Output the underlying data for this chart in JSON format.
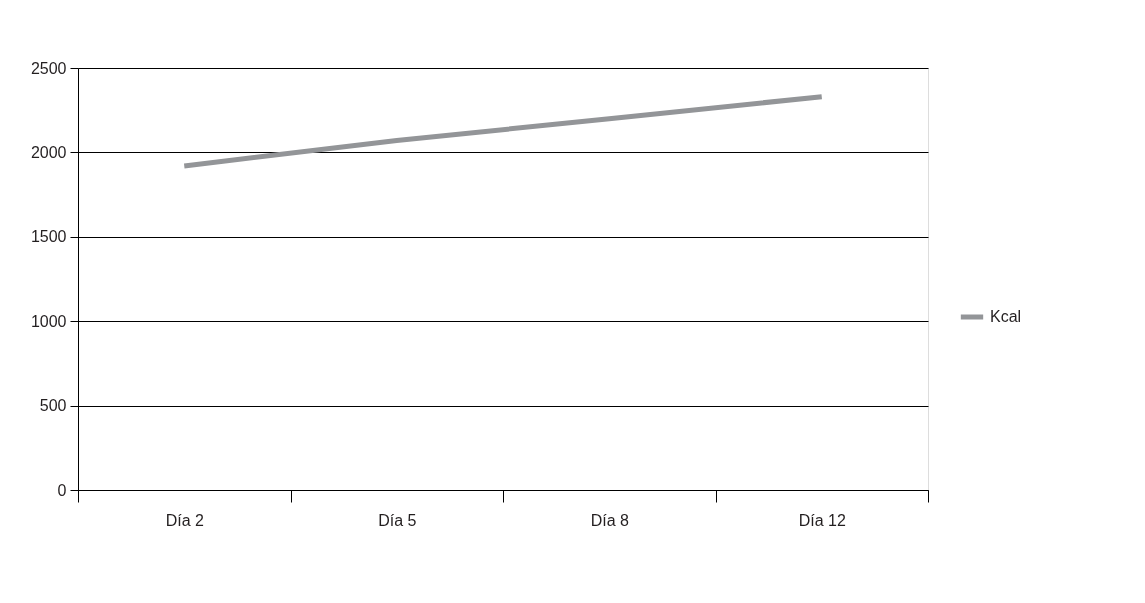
{
  "chart_data": {
    "type": "line",
    "categories": [
      "Día 2",
      "Día 5",
      "Día 8",
      "Día 12"
    ],
    "series": [
      {
        "name": "Kcal",
        "color": "#939598",
        "values": [
          1920,
          2070,
          2200,
          2330
        ]
      }
    ],
    "ylim": [
      0,
      2500
    ],
    "yticks": [
      0,
      500,
      1000,
      1500,
      2000,
      2500
    ],
    "grid": "y",
    "legend": "right",
    "marker": "none",
    "line_style": "solid"
  }
}
